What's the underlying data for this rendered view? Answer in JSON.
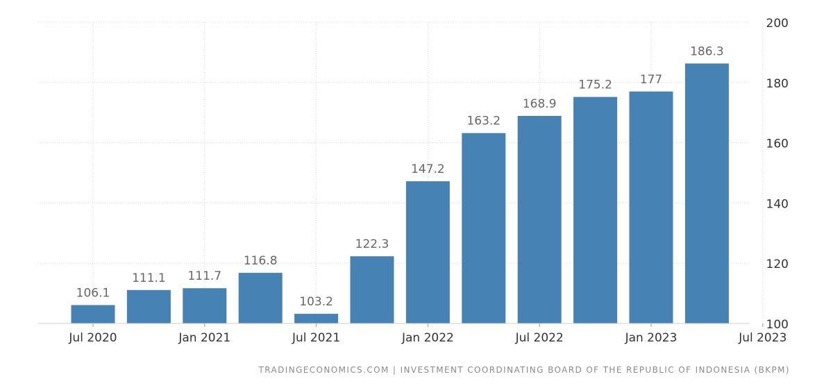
{
  "source": "TRADINGECONOMICS.COM | INVESTMENT COORDINATING BOARD OF THE REPUBLIC OF INDONESIA (BKPM)",
  "colors": {
    "bar": "#4682b4",
    "grid": "#d9d9d9",
    "label": "#666666",
    "axis": "#333333"
  },
  "chart_data": {
    "type": "bar",
    "categories": [
      "2020-Q3",
      "2020-Q4",
      "2021-Q1",
      "2021-Q2",
      "2021-Q3",
      "2021-Q4",
      "2022-Q1",
      "2022-Q2",
      "2022-Q3",
      "2022-Q4",
      "2023-Q1",
      "2023-Q2"
    ],
    "values": [
      106.1,
      111.1,
      111.7,
      116.8,
      103.2,
      122.3,
      147.2,
      163.2,
      168.9,
      175.2,
      177,
      186.3
    ],
    "value_labels": [
      "106.1",
      "111.1",
      "111.7",
      "116.8",
      "103.2",
      "122.3",
      "147.2",
      "163.2",
      "168.9",
      "175.2",
      "177",
      "186.3"
    ],
    "x_ticks": [
      "Jul 2020",
      "Jan 2021",
      "Jul 2021",
      "Jan 2022",
      "Jul 2022",
      "Jan 2023",
      "Jul 2023"
    ],
    "y_ticks": [
      100,
      120,
      140,
      160,
      180,
      200
    ],
    "ylim": [
      100,
      200
    ],
    "y_axis_side": "right",
    "grid": true,
    "title": "",
    "xlabel": "",
    "ylabel": ""
  }
}
